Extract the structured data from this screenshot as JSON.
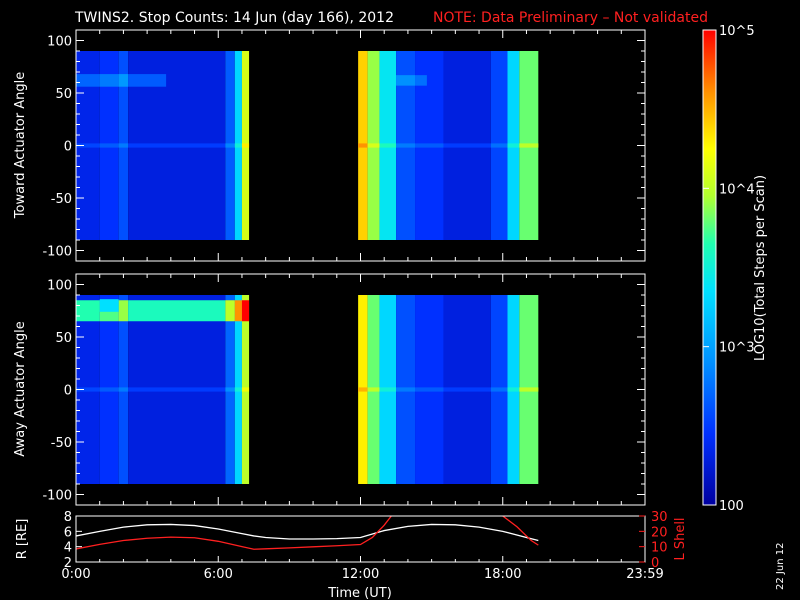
{
  "title": {
    "main": "TWINS2. Stop Counts: 14 Jun (day 166), 2012",
    "note": "NOTE: Data Preliminary – Not validated"
  },
  "colorbar": {
    "label": "LOG10(Total Steps per Scan)",
    "ticks": [
      "10^5",
      "10^4",
      "10^3",
      "100"
    ],
    "range": [
      100,
      100000
    ],
    "scale": "log"
  },
  "footer_date": "22 Jun 12",
  "chart_data": [
    {
      "type": "heatmap",
      "title": "",
      "ylabel": "Toward Actuator Angle",
      "xlabel": "",
      "x_unit": "hours UT",
      "xlim": [
        0,
        24
      ],
      "ylim": [
        -110,
        110
      ],
      "yticks": [
        100,
        50,
        0,
        -50,
        -100
      ],
      "ytick_labels": [
        "100",
        "50",
        "0",
        "-50",
        "-100"
      ],
      "angle_range": [
        -90,
        90
      ],
      "data_intervals": [
        [
          0.0,
          7.3
        ],
        [
          11.9,
          19.5
        ]
      ],
      "column_profile": [
        {
          "t": [
            0.0,
            1.0
          ],
          "log_counts": 2.35
        },
        {
          "t": [
            1.0,
            1.8
          ],
          "log_counts": 2.45
        },
        {
          "t": [
            1.8,
            2.2
          ],
          "log_counts": 2.6
        },
        {
          "t": [
            2.2,
            6.3
          ],
          "log_counts": 2.3
        },
        {
          "t": [
            6.3,
            6.7
          ],
          "log_counts": 2.65
        },
        {
          "t": [
            6.7,
            7.0
          ],
          "log_counts": 3.3
        },
        {
          "t": [
            7.0,
            7.3
          ],
          "log_counts": 4.1
        },
        {
          "t": [
            11.9,
            12.3
          ],
          "log_counts": 4.4
        },
        {
          "t": [
            12.3,
            12.8
          ],
          "log_counts": 3.9
        },
        {
          "t": [
            12.8,
            13.5
          ],
          "log_counts": 3.4
        },
        {
          "t": [
            13.5,
            14.3
          ],
          "log_counts": 2.6
        },
        {
          "t": [
            14.3,
            15.5
          ],
          "log_counts": 2.45
        },
        {
          "t": [
            15.5,
            17.5
          ],
          "log_counts": 2.3
        },
        {
          "t": [
            17.5,
            18.2
          ],
          "log_counts": 2.55
        },
        {
          "t": [
            18.2,
            18.7
          ],
          "log_counts": 3.3
        },
        {
          "t": [
            18.7,
            19.5
          ],
          "log_counts": 3.8
        }
      ],
      "bands": [
        {
          "angle_center": 62,
          "half_width": 6,
          "t": [
            0.0,
            3.8
          ],
          "delta_log": 0.35
        },
        {
          "angle_center": 62,
          "half_width": 5,
          "t": [
            13.5,
            14.8
          ],
          "delta_log": 0.3
        },
        {
          "angle_center": 0,
          "half_width": 2,
          "t": [
            0.0,
            7.3
          ],
          "delta_log": 0.2
        },
        {
          "angle_center": 0,
          "half_width": 2,
          "t": [
            11.9,
            19.5
          ],
          "delta_log": 0.2
        }
      ]
    },
    {
      "type": "heatmap",
      "title": "",
      "ylabel": "Away Actuator Angle",
      "xlabel": "",
      "x_unit": "hours UT",
      "xlim": [
        0,
        24
      ],
      "ylim": [
        -110,
        110
      ],
      "yticks": [
        100,
        50,
        0,
        -50,
        -100
      ],
      "ytick_labels": [
        "100",
        "50",
        "0",
        "-50",
        "-100"
      ],
      "angle_range": [
        -90,
        90
      ],
      "data_intervals": [
        [
          0.0,
          7.3
        ],
        [
          11.9,
          19.5
        ]
      ],
      "column_profile": [
        {
          "t": [
            0.0,
            1.0
          ],
          "log_counts": 2.35
        },
        {
          "t": [
            1.0,
            1.8
          ],
          "log_counts": 2.45
        },
        {
          "t": [
            1.8,
            2.2
          ],
          "log_counts": 2.6
        },
        {
          "t": [
            2.2,
            6.3
          ],
          "log_counts": 2.3
        },
        {
          "t": [
            6.3,
            6.7
          ],
          "log_counts": 2.7
        },
        {
          "t": [
            6.7,
            7.0
          ],
          "log_counts": 3.3
        },
        {
          "t": [
            7.0,
            7.3
          ],
          "log_counts": 4.0
        },
        {
          "t": [
            11.9,
            12.3
          ],
          "log_counts": 4.3
        },
        {
          "t": [
            12.3,
            12.8
          ],
          "log_counts": 3.8
        },
        {
          "t": [
            12.8,
            13.5
          ],
          "log_counts": 3.3
        },
        {
          "t": [
            13.5,
            14.3
          ],
          "log_counts": 2.6
        },
        {
          "t": [
            14.3,
            15.5
          ],
          "log_counts": 2.45
        },
        {
          "t": [
            15.5,
            17.5
          ],
          "log_counts": 2.3
        },
        {
          "t": [
            17.5,
            18.2
          ],
          "log_counts": 2.55
        },
        {
          "t": [
            18.2,
            18.7
          ],
          "log_counts": 3.3
        },
        {
          "t": [
            18.7,
            19.5
          ],
          "log_counts": 3.8
        }
      ],
      "bands": [
        {
          "angle_center": 75,
          "half_width": 10,
          "t": [
            0.0,
            7.3
          ],
          "delta_log": 1.3
        },
        {
          "angle_center": 80,
          "half_width": 6,
          "t": [
            1.0,
            1.8
          ],
          "delta_log": 0.9
        },
        {
          "angle_center": 0,
          "half_width": 2,
          "t": [
            0.0,
            7.3
          ],
          "delta_log": 0.2
        },
        {
          "angle_center": 0,
          "half_width": 2,
          "t": [
            11.9,
            19.5
          ],
          "delta_log": 0.2
        }
      ]
    },
    {
      "type": "line",
      "title": "",
      "xlabel": "Time (UT)",
      "x_unit": "hours UT",
      "xlim": [
        0,
        24
      ],
      "xticks": [
        0,
        6,
        12,
        18,
        24
      ],
      "xtick_labels": [
        "0:00",
        "6:00",
        "12:00",
        "18:00",
        "23:59"
      ],
      "ylabel": "R [RE]",
      "ylim": [
        2,
        8
      ],
      "yticks": [
        2,
        4,
        6,
        8
      ],
      "ytick_labels": [
        "2",
        "4",
        "6",
        "8"
      ],
      "y2label": "L Shell",
      "y2lim": [
        0,
        30
      ],
      "y2ticks": [
        0,
        10,
        20,
        30
      ],
      "y2tick_labels": [
        "0",
        "10",
        "20",
        "30"
      ],
      "series": [
        {
          "name": "R [RE]",
          "axis": "left",
          "color": "#ffffff",
          "x": [
            0,
            1,
            2,
            3,
            4,
            5,
            6,
            7,
            7.5,
            8,
            9,
            10,
            11,
            12,
            13,
            14,
            15,
            16,
            17,
            18,
            19,
            19.5
          ],
          "y": [
            5.4,
            6.0,
            6.55,
            6.85,
            6.9,
            6.75,
            6.3,
            5.7,
            5.4,
            5.2,
            5.0,
            5.0,
            5.05,
            5.2,
            6.1,
            6.65,
            6.9,
            6.85,
            6.55,
            6.0,
            5.2,
            4.8
          ]
        },
        {
          "name": "L Shell",
          "axis": "right",
          "color": "#ff2020",
          "x": [
            0,
            1,
            2,
            3,
            4,
            5,
            6,
            7,
            7.5,
            8,
            9,
            10,
            11,
            12,
            12.5,
            13,
            13.3
          ],
          "y": [
            8.5,
            11.5,
            14.0,
            15.5,
            16.2,
            15.8,
            13.5,
            10.0,
            8.3,
            8.6,
            9.2,
            9.9,
            10.6,
            11.4,
            16.0,
            24.0,
            30.0
          ],
          "segment_2": {
            "x": [
              18.0,
              18.6,
              19.2,
              19.5
            ],
            "y": [
              30.0,
              23.0,
              14.0,
              11.0
            ]
          }
        }
      ]
    }
  ]
}
